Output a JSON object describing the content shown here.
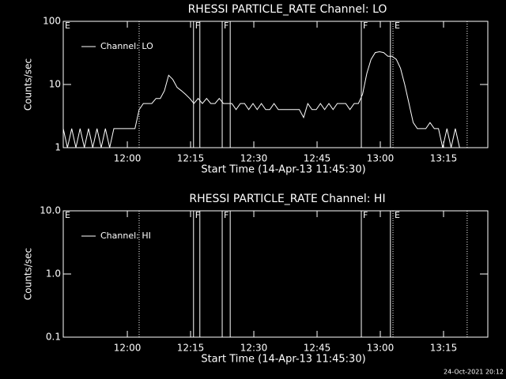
{
  "chart_data": [
    {
      "type": "line",
      "title": "RHESSI PARTICLE_RATE Channel: LO",
      "xlabel": "Start Time (14-Apr-13 11:45:30)",
      "ylabel": "Counts/sec",
      "log_y": true,
      "ylim": [
        1,
        100
      ],
      "yticks": [
        1,
        10,
        100
      ],
      "xlim": [
        0,
        100.7
      ],
      "xticks": [
        {
          "value": 15.2,
          "label": "12:00"
        },
        {
          "value": 30.2,
          "label": "12:15"
        },
        {
          "value": 45.2,
          "label": "12:30"
        },
        {
          "value": 60.2,
          "label": "12:45"
        },
        {
          "value": 75.2,
          "label": "13:00"
        },
        {
          "value": 90.2,
          "label": "13:15"
        }
      ],
      "legend": "upper-left",
      "flags": [
        {
          "label": "E",
          "x": 0
        },
        {
          "label": "F",
          "x": 30.9
        },
        {
          "label": "F",
          "x": 37.7
        },
        {
          "label": "F",
          "x": 70.7
        },
        {
          "label": "E",
          "x": 78.2
        }
      ],
      "lines": [
        {
          "x": 18.0,
          "style": "dotted"
        },
        {
          "x": 30.9,
          "style": "solid"
        },
        {
          "x": 32.4,
          "style": "solid"
        },
        {
          "x": 37.7,
          "style": "solid"
        },
        {
          "x": 39.6,
          "style": "solid"
        },
        {
          "x": 70.7,
          "style": "solid"
        },
        {
          "x": 77.6,
          "style": "solid"
        },
        {
          "x": 78.2,
          "style": "dotted"
        },
        {
          "x": 95.8,
          "style": "dotted"
        }
      ],
      "series": [
        {
          "name": "Channel: LO",
          "color": "#ffffff",
          "x": [
            0,
            1,
            2,
            3,
            4,
            5,
            6,
            7,
            8,
            9,
            10,
            11,
            12,
            13,
            14,
            15,
            16,
            17,
            18,
            19,
            20,
            21,
            22,
            23,
            24,
            25,
            26,
            27,
            28,
            29,
            30,
            31,
            32,
            33,
            34,
            35,
            36,
            37,
            38,
            39,
            40,
            41,
            42,
            43,
            44,
            45,
            46,
            47,
            48,
            49,
            50,
            51,
            52,
            53,
            54,
            55,
            56,
            57,
            58,
            59,
            60,
            61,
            62,
            63,
            64,
            65,
            66,
            67,
            68,
            69,
            70,
            71,
            72,
            73,
            74,
            75,
            76,
            77,
            78,
            79,
            80,
            81,
            82,
            83,
            84,
            85,
            86,
            87,
            88,
            89,
            90,
            91,
            92,
            93,
            94,
            95
          ],
          "values": [
            2,
            1,
            2,
            1,
            2,
            1,
            2,
            1,
            2,
            1,
            2,
            1,
            2,
            2,
            2,
            2,
            2,
            2,
            4,
            5,
            5,
            5,
            6,
            6,
            8,
            14,
            12,
            9,
            8,
            7,
            6,
            5,
            6,
            5,
            6,
            5,
            5,
            6,
            5,
            5,
            5,
            4,
            5,
            5,
            4,
            5,
            4,
            5,
            4,
            4,
            5,
            4,
            4,
            4,
            4,
            4,
            4,
            3,
            5,
            4,
            4,
            5,
            4,
            5,
            4,
            5,
            5,
            5,
            4,
            5,
            5,
            7,
            15,
            25,
            32,
            33,
            32,
            28,
            28,
            25,
            18,
            10,
            5,
            2.5,
            2,
            2,
            2,
            2.5,
            2,
            2,
            1,
            2,
            1,
            2,
            1,
            1
          ]
        }
      ]
    },
    {
      "type": "line",
      "title": "RHESSI PARTICLE_RATE Channel: HI",
      "xlabel": "Start Time (14-Apr-13 11:45:30)",
      "ylabel": "Counts/sec",
      "log_y": true,
      "ylim": [
        0.1,
        10
      ],
      "yticks": [
        0.1,
        {
          "value": 1,
          "label": "1.0"
        },
        {
          "value": 10,
          "label": "10.0"
        }
      ],
      "xlim": [
        0,
        100.7
      ],
      "xticks": [
        {
          "value": 15.2,
          "label": "12:00"
        },
        {
          "value": 30.2,
          "label": "12:15"
        },
        {
          "value": 45.2,
          "label": "12:30"
        },
        {
          "value": 60.2,
          "label": "12:45"
        },
        {
          "value": 75.2,
          "label": "13:00"
        },
        {
          "value": 90.2,
          "label": "13:15"
        }
      ],
      "legend": "upper-left",
      "flags": [
        {
          "label": "E",
          "x": 0
        },
        {
          "label": "F",
          "x": 30.9
        },
        {
          "label": "F",
          "x": 37.7
        },
        {
          "label": "F",
          "x": 70.7
        },
        {
          "label": "E",
          "x": 78.2
        }
      ],
      "lines": [
        {
          "x": 18.0,
          "style": "dotted"
        },
        {
          "x": 30.9,
          "style": "solid"
        },
        {
          "x": 32.4,
          "style": "solid"
        },
        {
          "x": 37.7,
          "style": "solid"
        },
        {
          "x": 39.6,
          "style": "solid"
        },
        {
          "x": 70.7,
          "style": "solid"
        },
        {
          "x": 77.6,
          "style": "solid"
        },
        {
          "x": 78.2,
          "style": "dotted"
        },
        {
          "x": 95.8,
          "style": "dotted"
        }
      ],
      "series": [
        {
          "name": "Channel: HI",
          "color": "#ffffff",
          "x": [],
          "values": []
        }
      ]
    }
  ],
  "footer": "24-Oct-2021 20:12"
}
